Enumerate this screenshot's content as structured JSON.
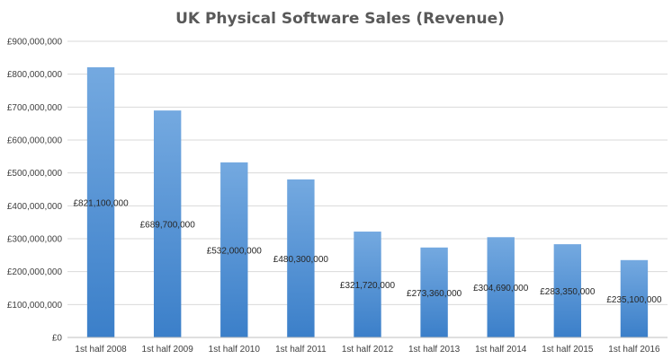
{
  "chart_data": {
    "type": "bar",
    "title": "UK Physical Software Sales (Revenue)",
    "xlabel": "",
    "ylabel": "",
    "categories": [
      "1st half 2008",
      "1st half 2009",
      "1st half 2010",
      "1st half 2011",
      "1st half 2012",
      "1st half 2013",
      "1st half 2014",
      "1st half 2015",
      "1st half 2016"
    ],
    "values": [
      821100000,
      689700000,
      532000000,
      480300000,
      321720000,
      273360000,
      304690000,
      283350000,
      235100000
    ],
    "data_labels": [
      "£821,100,000",
      "£689,700,000",
      "£532,000,000",
      "£480,300,000",
      "£321,720,000",
      "£273,360,000",
      "£304,690,000",
      "£283,350,000",
      "£235,100,000"
    ],
    "ylim": [
      0,
      900000000
    ],
    "yticks": [
      0,
      100000000,
      200000000,
      300000000,
      400000000,
      500000000,
      600000000,
      700000000,
      800000000,
      900000000
    ],
    "ytick_labels": [
      "£0",
      "£100,000,000",
      "£200,000,000",
      "£300,000,000",
      "£400,000,000",
      "£500,000,000",
      "£600,000,000",
      "£700,000,000",
      "£800,000,000",
      "£900,000,000"
    ],
    "grid": true,
    "legend": "none",
    "colors": {
      "bar_top": "#74a9e0",
      "bar_bottom": "#3b7fc9"
    }
  }
}
